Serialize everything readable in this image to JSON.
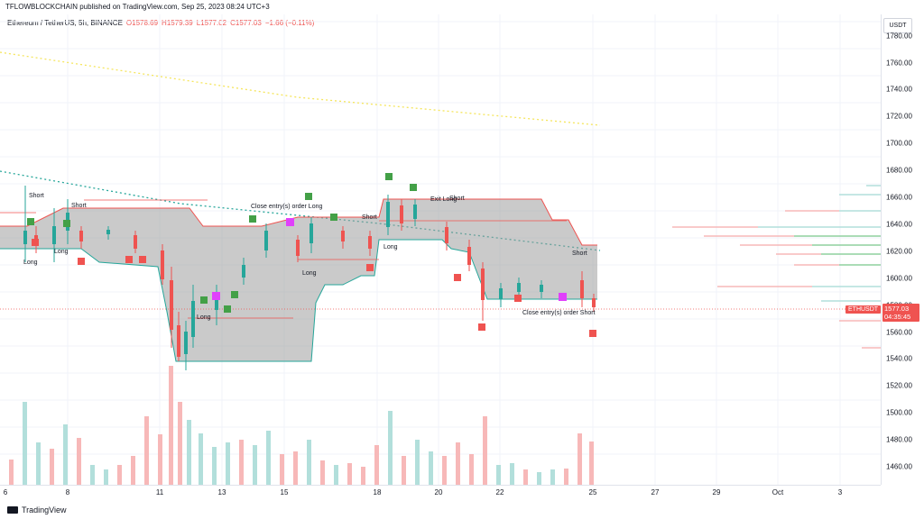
{
  "header": {
    "published": "TFLOWBLOCKCHAIN published on TradingView.com, Sep 25, 2023 08:24 UTC+3",
    "symbol": "Ethereum / TetherUS, 5h, BINANCE",
    "ohlc": {
      "o": "O1578.69",
      "h": "H1579.39",
      "l": "L1577.02",
      "c": "C1577.03",
      "chg": "−1.66 (−0.11%)"
    }
  },
  "axis": {
    "currency": "USDT",
    "yticks": [
      "1780.00",
      "1760.00",
      "1740.00",
      "1720.00",
      "1700.00",
      "1680.00",
      "1660.00",
      "1640.00",
      "1620.00",
      "1600.00",
      "1580.00",
      "1560.00",
      "1540.00",
      "1520.00",
      "1500.00",
      "1480.00",
      "1460.00"
    ],
    "xticks": [
      "6",
      "8",
      "11",
      "13",
      "15",
      "18",
      "20",
      "22",
      "25",
      "27",
      "29",
      "Oct",
      "3"
    ]
  },
  "current": {
    "symbol_tag": "ETHUSDT",
    "price": "1577.03",
    "countdown": "04:35:45"
  },
  "annotations": {
    "short_1": "Short",
    "short_2": "Short",
    "short_3": "Short",
    "short_4": "Short",
    "short_5": "Short",
    "short_6": "Short",
    "long_1": "Long",
    "long_2": "Long",
    "long_3": "Long",
    "long_4": "Long",
    "long_5": "Long",
    "close_entry_long": "Close entry(s) order Long",
    "close_entry_short": "Close entry(s) order Short",
    "exit_long": "Exit Long"
  },
  "footer": {
    "brand": "TradingView"
  },
  "colors": {
    "up": "#26a69a",
    "down": "#ef5350",
    "band": "#9e9e9e",
    "vol_up": "#b2dfdb",
    "vol_down": "#f7b8b8"
  },
  "chart_data": {
    "type": "candlestick",
    "interval": "5h",
    "ylim": [
      1450,
      1785
    ],
    "x_ticks": [
      "6",
      "8",
      "11",
      "13",
      "15",
      "18",
      "20",
      "22",
      "25",
      "27",
      "29",
      "Oct",
      "3"
    ],
    "last": {
      "open": 1578.69,
      "high": 1579.39,
      "low": 1577.02,
      "close": 1577.03
    }
  }
}
